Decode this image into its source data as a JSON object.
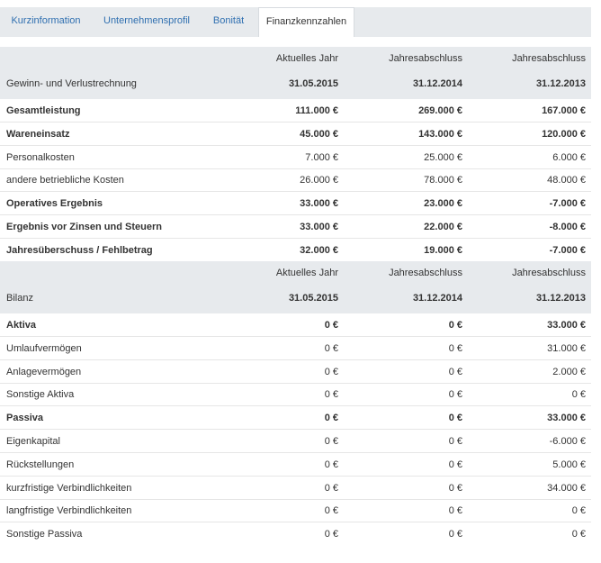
{
  "tabs": [
    {
      "label": "Kurzinformation"
    },
    {
      "label": "Unternehmensprofil"
    },
    {
      "label": "Bonität"
    },
    {
      "label": "Finanzkennzahlen"
    }
  ],
  "columns": {
    "headers": [
      "Aktuelles Jahr",
      "Jahresabschluss",
      "Jahresabschluss"
    ],
    "dates": [
      "31.05.2015",
      "31.12.2014",
      "31.12.2013"
    ]
  },
  "guv": {
    "title": "Gewinn- und Verlustrechnung",
    "rows": [
      {
        "label": "Gesamtleistung",
        "v": [
          "111.000 €",
          "269.000 €",
          "167.000 €"
        ],
        "bold": true
      },
      {
        "label": "Wareneinsatz",
        "v": [
          "45.000 €",
          "143.000 €",
          "120.000 €"
        ],
        "bold": true
      },
      {
        "label": "Personalkosten",
        "v": [
          "7.000 €",
          "25.000 €",
          "6.000 €"
        ],
        "bold": false
      },
      {
        "label": "andere betriebliche Kosten",
        "v": [
          "26.000 €",
          "78.000 €",
          "48.000 €"
        ],
        "bold": false
      },
      {
        "label": "Operatives Ergebnis",
        "v": [
          "33.000 €",
          "23.000 €",
          "-7.000 €"
        ],
        "bold": true
      },
      {
        "label": "Ergebnis vor Zinsen und Steuern",
        "v": [
          "33.000 €",
          "22.000 €",
          "-8.000 €"
        ],
        "bold": true
      },
      {
        "label": "Jahresüberschuss / Fehlbetrag",
        "v": [
          "32.000 €",
          "19.000 €",
          "-7.000 €"
        ],
        "bold": true
      }
    ]
  },
  "bilanz": {
    "title": "Bilanz",
    "rows": [
      {
        "label": "Aktiva",
        "v": [
          "0 €",
          "0 €",
          "33.000 €"
        ],
        "bold": true
      },
      {
        "label": "Umlaufvermögen",
        "v": [
          "0 €",
          "0 €",
          "31.000 €"
        ],
        "bold": false
      },
      {
        "label": "Anlagevermögen",
        "v": [
          "0 €",
          "0 €",
          "2.000 €"
        ],
        "bold": false
      },
      {
        "label": "Sonstige Aktiva",
        "v": [
          "0 €",
          "0 €",
          "0 €"
        ],
        "bold": false
      },
      {
        "label": "Passiva",
        "v": [
          "0 €",
          "0 €",
          "33.000 €"
        ],
        "bold": true
      },
      {
        "label": "Eigenkapital",
        "v": [
          "0 €",
          "0 €",
          "-6.000 €"
        ],
        "bold": false
      },
      {
        "label": "Rückstellungen",
        "v": [
          "0 €",
          "0 €",
          "5.000 €"
        ],
        "bold": false
      },
      {
        "label": "kurzfristige Verbindlichkeiten",
        "v": [
          "0 €",
          "0 €",
          "34.000 €"
        ],
        "bold": false
      },
      {
        "label": "langfristige Verbindlichkeiten",
        "v": [
          "0 €",
          "0 €",
          "0 €"
        ],
        "bold": false
      },
      {
        "label": "Sonstige Passiva",
        "v": [
          "0 €",
          "0 €",
          "0 €"
        ],
        "bold": false
      }
    ]
  }
}
